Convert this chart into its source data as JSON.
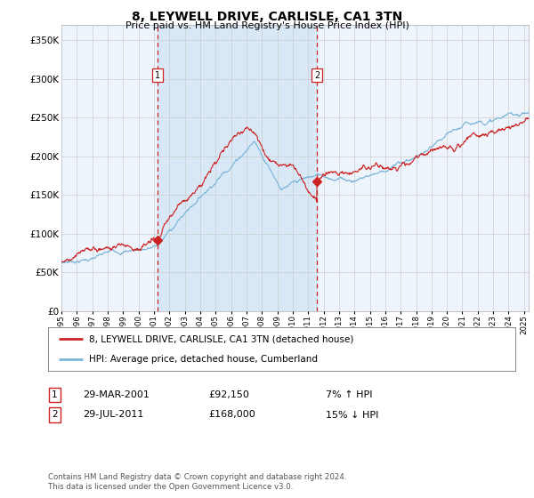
{
  "title": "8, LEYWELL DRIVE, CARLISLE, CA1 3TN",
  "subtitle": "Price paid vs. HM Land Registry's House Price Index (HPI)",
  "hpi_label": "HPI: Average price, detached house, Cumberland",
  "property_label": "8, LEYWELL DRIVE, CARLISLE, CA1 3TN (detached house)",
  "sale1_date": "29-MAR-2001",
  "sale1_price": "£92,150",
  "sale1_hpi": "7% ↑ HPI",
  "sale2_date": "29-JUL-2011",
  "sale2_price": "£168,000",
  "sale2_hpi": "15% ↓ HPI",
  "footer": "Contains HM Land Registry data © Crown copyright and database right 2024.\nThis data is licensed under the Open Government Licence v3.0.",
  "ylim": [
    0,
    370000
  ],
  "yticks": [
    0,
    50000,
    100000,
    150000,
    200000,
    250000,
    300000,
    350000
  ],
  "plot_bg": "#eef4fb",
  "hpi_color": "#7ab5d8",
  "property_color": "#cc2222",
  "vline_color": "#cc2222",
  "shade_color": "#d0e4f5",
  "grid_color": "#cccccc",
  "sale1_x": 2001.24,
  "sale1_y": 92150,
  "sale2_x": 2011.57,
  "sale2_y": 168000,
  "xmin": 1995,
  "xmax": 2025.3
}
